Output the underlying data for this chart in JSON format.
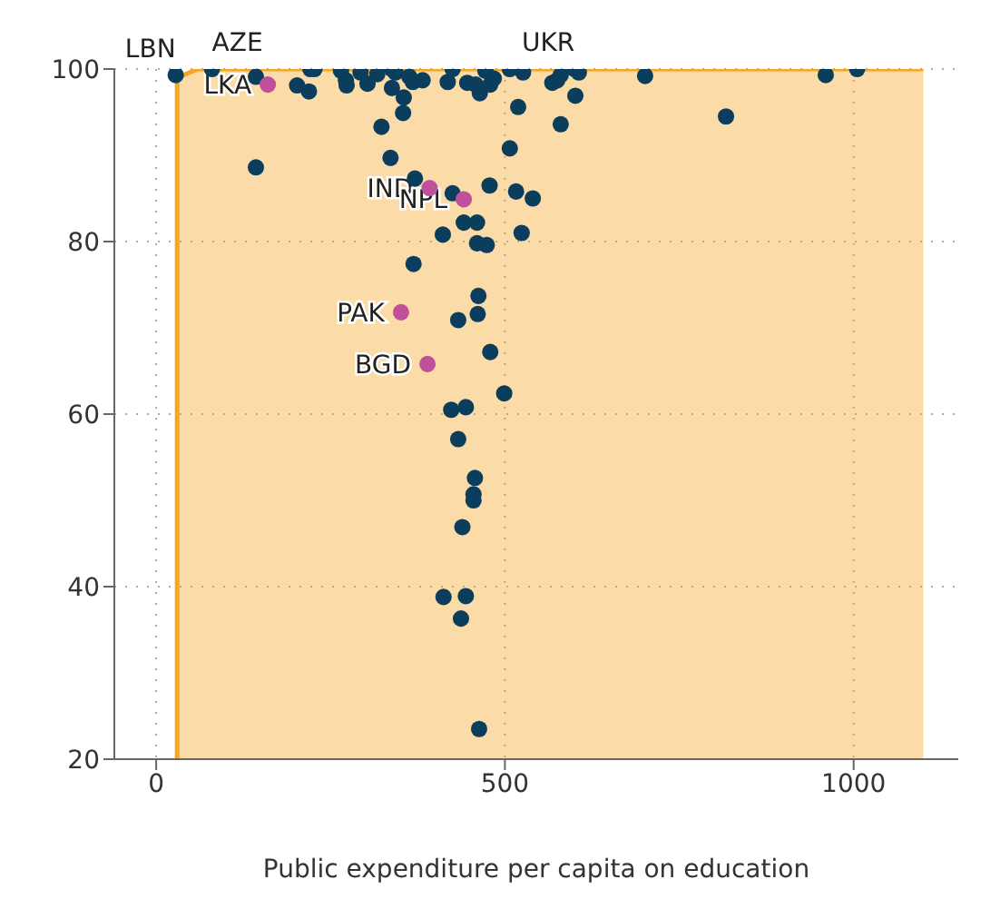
{
  "chart_data": {
    "type": "scatter",
    "xlabel": "Public expenditure per capita on education",
    "xlim": [
      -60,
      1150
    ],
    "xticks": [
      0,
      500,
      1000
    ],
    "ylim": [
      20,
      100
    ],
    "yticks": [
      20,
      40,
      60,
      80,
      100
    ],
    "grid": true,
    "marker": "circle",
    "series": [
      {
        "type": "area",
        "marker": "none",
        "color": "#f5a623",
        "x": [
          30,
          30,
          60,
          1100
        ],
        "values": [
          20,
          99,
          100,
          100
        ]
      },
      {
        "color": "#0b3d5c",
        "x": [
          28,
          80,
          143,
          221,
          227,
          265,
          293,
          317,
          338,
          343,
          363,
          382,
          425,
          472,
          484,
          507,
          526,
          580,
          600,
          606,
          701,
          960,
          1005,
          202,
          219,
          273,
          272,
          303,
          338,
          368,
          418,
          446,
          458,
          479,
          464,
          568,
          575,
          601,
          355,
          354,
          519,
          323,
          580,
          817,
          507,
          336,
          143,
          371,
          478,
          516,
          540,
          425,
          441,
          460,
          411,
          460,
          474,
          524,
          369,
          462,
          461,
          433,
          479,
          499,
          423,
          444,
          433,
          457,
          455,
          455,
          439,
          412,
          444,
          437,
          463
        ],
        "values": [
          99.3,
          100,
          99.1,
          100,
          100,
          99.8,
          99.6,
          99.4,
          100,
          99.6,
          99.1,
          98.7,
          100,
          99.8,
          98.9,
          100,
          99.6,
          99.3,
          100,
          99.6,
          99.2,
          99.3,
          100,
          98.1,
          97.4,
          98.1,
          98.7,
          98.3,
          97.8,
          98.5,
          98.5,
          98.4,
          98.2,
          98.2,
          97.2,
          98.4,
          98.7,
          96.9,
          96.7,
          94.9,
          95.6,
          93.3,
          93.6,
          94.5,
          90.8,
          89.7,
          88.6,
          87.3,
          86.5,
          85.8,
          85,
          85.6,
          82.2,
          82.2,
          80.8,
          79.8,
          79.6,
          81,
          77.4,
          73.7,
          71.6,
          70.9,
          67.2,
          62.4,
          60.5,
          60.8,
          57.1,
          52.6,
          50.7,
          50,
          46.9,
          38.8,
          38.9,
          36.3,
          23.5
        ]
      },
      {
        "color": "#c0509a",
        "x": [
          160,
          392,
          441,
          351,
          389
        ],
        "values": [
          98.2,
          86.2,
          84.9,
          71.8,
          65.8
        ]
      }
    ],
    "annotations": [
      {
        "text": "LBN",
        "x": 28,
        "y": 99.3
      },
      {
        "text": "AZE",
        "x": 80,
        "y": 100
      },
      {
        "text": "UKR",
        "x": 600,
        "y": 100
      },
      {
        "text": "LKA",
        "x": 160,
        "y": 98.2
      },
      {
        "text": "IND",
        "x": 392,
        "y": 86.2
      },
      {
        "text": "NPL",
        "x": 441,
        "y": 84.9
      },
      {
        "text": "PAK",
        "x": 351,
        "y": 71.8
      },
      {
        "text": "BGD",
        "x": 389,
        "y": 65.8
      }
    ]
  }
}
